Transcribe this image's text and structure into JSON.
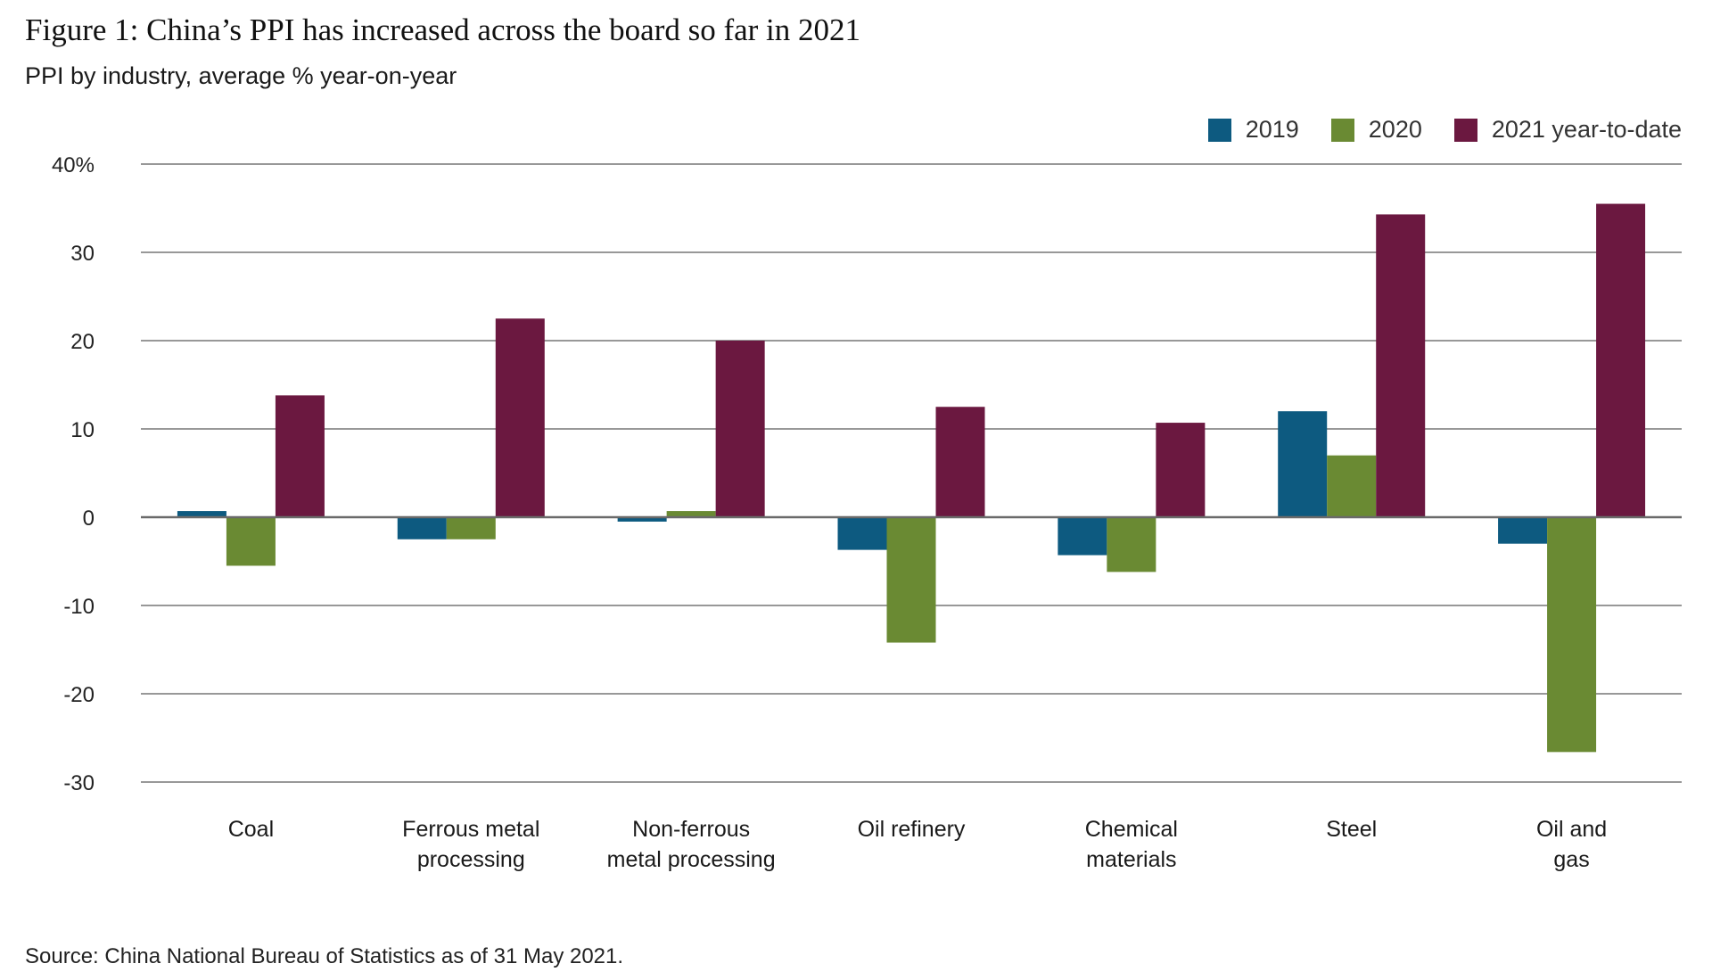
{
  "figure": {
    "title": "Figure 1: China’s PPI has increased across the board so far in 2021",
    "subtitle": "PPI by industry, average % year-on-year",
    "source": "Source: China National Bureau of Statistics as of 31 May 2021."
  },
  "colors": {
    "2019": "#0d5a80",
    "2020": "#6a8a33",
    "2021 year-to-date": "#6b1840",
    "gridline": "#5a5a5a",
    "zero_line": "#6a6a6a"
  },
  "chart_data": {
    "type": "bar",
    "title": "Figure 1: China’s PPI has increased across the board so far in 2021",
    "subtitle": "PPI by industry, average % year-on-year",
    "xlabel": "",
    "ylabel": "",
    "ylim": [
      -30,
      40
    ],
    "yticks": [
      40,
      30,
      20,
      10,
      0,
      -10,
      -20,
      -30
    ],
    "ytick_labels": [
      "40%",
      "30",
      "20",
      "10",
      "0",
      "-10",
      "-20",
      "-30"
    ],
    "grid": true,
    "legend_position": "top-right",
    "categories": [
      [
        "Coal"
      ],
      [
        "Ferrous metal",
        "processing"
      ],
      [
        "Non-ferrous",
        "metal processing"
      ],
      [
        "Oil refinery"
      ],
      [
        "Chemical",
        "materials"
      ],
      [
        "Steel"
      ],
      [
        "Oil and",
        "gas"
      ]
    ],
    "series": [
      {
        "name": "2019",
        "values": [
          0.7,
          -2.5,
          -0.5,
          -3.7,
          -4.3,
          12.0,
          -3.0
        ]
      },
      {
        "name": "2020",
        "values": [
          -5.5,
          -2.5,
          0.7,
          -14.2,
          -6.2,
          7.0,
          -26.6
        ]
      },
      {
        "name": "2021 year-to-date",
        "values": [
          13.8,
          22.5,
          20.0,
          12.5,
          10.7,
          34.3,
          35.5
        ]
      }
    ]
  }
}
